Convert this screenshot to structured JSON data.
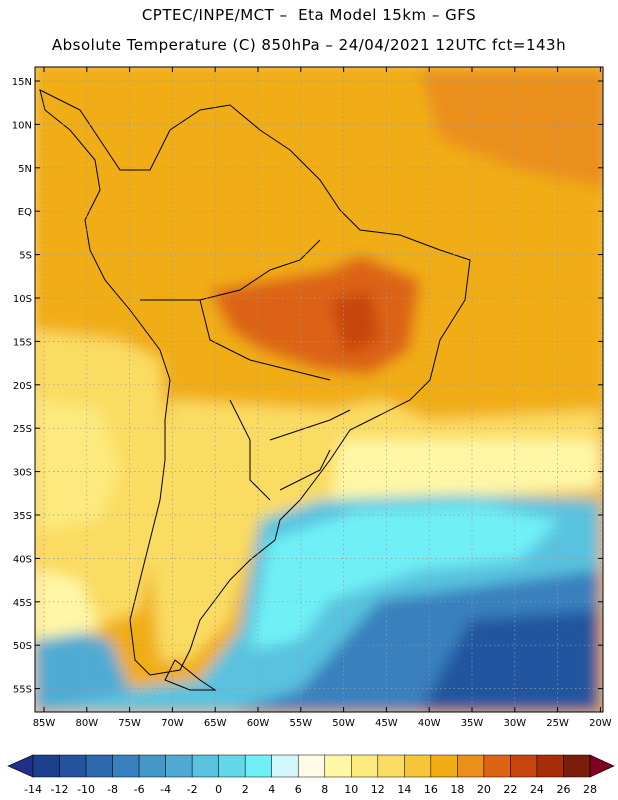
{
  "header": {
    "title_line1": "CPTEC/INPE/MCT –  Eta Model 15km – GFS",
    "title_line2": "Absolute Temperature (C) 850hPa – 24/04/2021 12UTC fct=143h"
  },
  "map": {
    "lat_labels": [
      "15N",
      "10N",
      "5N",
      "EQ",
      "5S",
      "10S",
      "15S",
      "20S",
      "25S",
      "30S",
      "35S",
      "40S",
      "45S",
      "50S",
      "55S"
    ],
    "lon_labels": [
      "85W",
      "80W",
      "75W",
      "70W",
      "65W",
      "60W",
      "55W",
      "50W",
      "45W",
      "40W",
      "35W",
      "30W",
      "25W",
      "20W"
    ]
  },
  "colorbar": {
    "ticks": [
      "-14",
      "-12",
      "-10",
      "-8",
      "-6",
      "-4",
      "-2",
      "0",
      "2",
      "4",
      "6",
      "8",
      "10",
      "12",
      "14",
      "16",
      "18",
      "20",
      "22",
      "24",
      "26",
      "28"
    ],
    "colors": [
      "#1c3f8c",
      "#24549f",
      "#2e69b0",
      "#3880be",
      "#4497c9",
      "#4fabd3",
      "#59c2df",
      "#62d8ea",
      "#6ff0f6",
      "#d2f8fb",
      "#fffbe6",
      "#fff7a6",
      "#fdea7e",
      "#fadc62",
      "#f6c63a",
      "#f1ad12",
      "#eb8f1a",
      "#dc6414",
      "#c8440c",
      "#a82d08",
      "#7a1d0a"
    ],
    "under_color": "#232f86",
    "over_color": "#800023"
  }
}
